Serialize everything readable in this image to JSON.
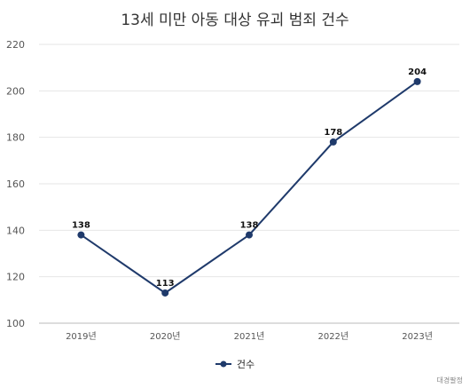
{
  "chart_data": {
    "type": "line",
    "title": "13세 미만 아동 대상 유괴 범죄 건수",
    "categories": [
      "2019년",
      "2020년",
      "2021년",
      "2022년",
      "2023년"
    ],
    "series": [
      {
        "name": "건수",
        "values": [
          138,
          113,
          138,
          178,
          204
        ],
        "color": "#1f3a6b"
      }
    ],
    "ylim": [
      100,
      220
    ],
    "yticks": [
      100,
      120,
      140,
      160,
      180,
      200,
      220
    ],
    "grid": true,
    "legend": "bottom-center",
    "data_labels": true
  },
  "source": "대경팔정"
}
